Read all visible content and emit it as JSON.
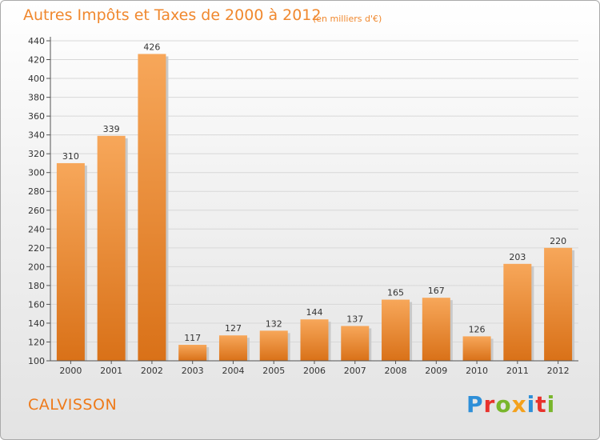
{
  "header": {
    "title": "Autres Impôts et Taxes de 2000 à 2012",
    "subtitle": "(en milliers d'€)"
  },
  "footer": {
    "commune": "CALVISSON",
    "brand": "Proxiti",
    "brand_colors": [
      "#2e8fd8",
      "#e8322c",
      "#79b62c",
      "#f4a11c",
      "#2e8fd8",
      "#e8322c",
      "#79b62c"
    ]
  },
  "colors": {
    "bar_light": "#f7a75a",
    "bar_dark": "#d97118",
    "accent": "#f0882e",
    "grid": "#d8d8d8"
  },
  "chart_data": {
    "type": "bar",
    "title": "Autres Impôts et Taxes de 2000 à 2012",
    "subtitle": "(en milliers d'€)",
    "categories": [
      "2000",
      "2001",
      "2002",
      "2003",
      "2004",
      "2005",
      "2006",
      "2007",
      "2008",
      "2009",
      "2010",
      "2011",
      "2012"
    ],
    "values": [
      310,
      339,
      426,
      117,
      127,
      132,
      144,
      137,
      165,
      167,
      126,
      203,
      220
    ],
    "ylim": [
      100,
      440
    ],
    "yticks": [
      100,
      120,
      140,
      160,
      180,
      200,
      220,
      240,
      260,
      280,
      300,
      320,
      340,
      360,
      380,
      400,
      420,
      440
    ],
    "grid": true,
    "xlabel": "",
    "ylabel": ""
  }
}
